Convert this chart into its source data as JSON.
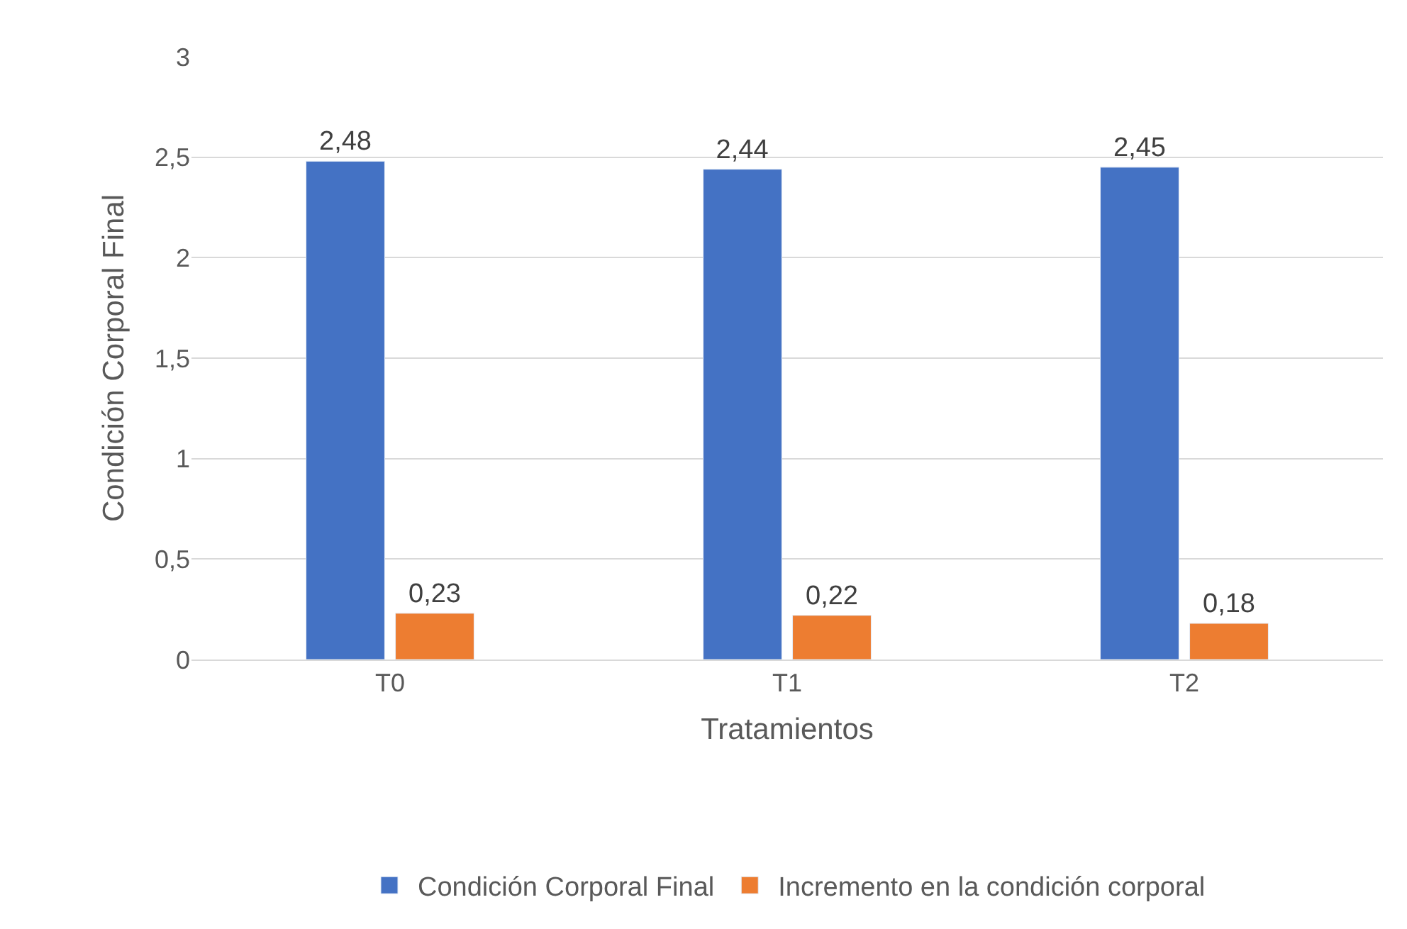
{
  "chart_data": {
    "type": "bar",
    "xlabel": "Tratamientos",
    "ylabel": "Condición Corporal Final",
    "categories": [
      "T0",
      "T1",
      "T2"
    ],
    "series": [
      {
        "name": "Condición Corporal Final",
        "color": "#4472c4",
        "values": [
          2.48,
          2.44,
          2.45
        ],
        "value_labels": [
          "2,48",
          "2,44",
          "2,45"
        ]
      },
      {
        "name": "Incremento en la condición corporal",
        "color": "#ed7d31",
        "values": [
          0.23,
          0.22,
          0.18
        ],
        "value_labels": [
          "0,23",
          "0,22",
          "0,18"
        ]
      }
    ],
    "ylim": [
      0,
      3
    ],
    "yticks": [
      0,
      {
        "value": 0.5,
        "label": "0,5"
      },
      1,
      {
        "value": 1.5,
        "label": "1,5"
      },
      2,
      {
        "value": 2.5,
        "label": "2,5"
      },
      3
    ],
    "grid": "y",
    "legend": "bottom"
  }
}
